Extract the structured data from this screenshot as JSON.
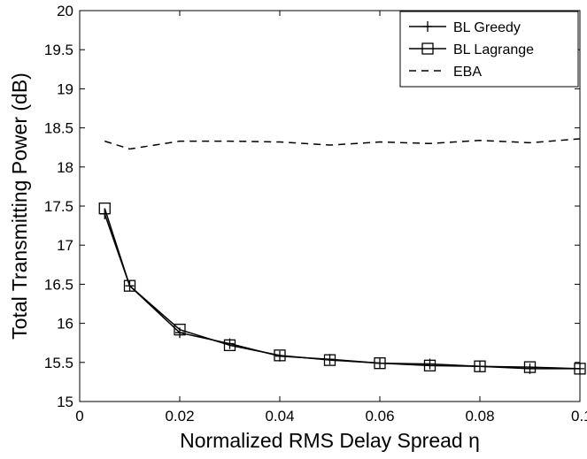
{
  "chart_data": {
    "type": "line",
    "title": "",
    "xlabel": "Normalized RMS Delay Spread η",
    "ylabel": "Total Transmitting Power (dB)",
    "xlim": [
      0,
      0.1
    ],
    "ylim": [
      15,
      20
    ],
    "xticks": [
      0,
      0.02,
      0.04,
      0.06,
      0.08,
      0.1
    ],
    "xtick_labels": [
      "0",
      "0.02",
      "0.04",
      "0.06",
      "0.08",
      "0.1"
    ],
    "yticks": [
      15,
      15.5,
      16,
      16.5,
      17,
      17.5,
      18,
      18.5,
      19,
      19.5,
      20
    ],
    "ytick_labels": [
      "15",
      "15.5",
      "16",
      "16.5",
      "17",
      "17.5",
      "18",
      "18.5",
      "19",
      "19.5",
      "20"
    ],
    "grid": false,
    "legend_position": "top-right",
    "series": [
      {
        "name": "BL Greedy",
        "marker": "plus",
        "line_style": "solid",
        "color": "#000000",
        "x": [
          0.005,
          0.01,
          0.02,
          0.03,
          0.04,
          0.05,
          0.06,
          0.07,
          0.08,
          0.09,
          0.1
        ],
        "y": [
          17.4,
          16.48,
          15.88,
          15.74,
          15.58,
          15.54,
          15.49,
          15.48,
          15.45,
          15.42,
          15.42
        ]
      },
      {
        "name": "BL Lagrange",
        "marker": "square",
        "line_style": "solid",
        "color": "#000000",
        "x": [
          0.005,
          0.01,
          0.02,
          0.03,
          0.04,
          0.05,
          0.06,
          0.07,
          0.08,
          0.09,
          0.1
        ],
        "y": [
          17.47,
          16.48,
          15.92,
          15.72,
          15.59,
          15.53,
          15.49,
          15.46,
          15.45,
          15.44,
          15.42
        ]
      },
      {
        "name": "EBA",
        "marker": "none",
        "line_style": "dashed",
        "color": "#000000",
        "x": [
          0.005,
          0.01,
          0.02,
          0.03,
          0.04,
          0.05,
          0.06,
          0.07,
          0.08,
          0.09,
          0.1
        ],
        "y": [
          18.33,
          18.23,
          18.33,
          18.33,
          18.32,
          18.28,
          18.32,
          18.3,
          18.34,
          18.31,
          18.36
        ]
      }
    ]
  }
}
